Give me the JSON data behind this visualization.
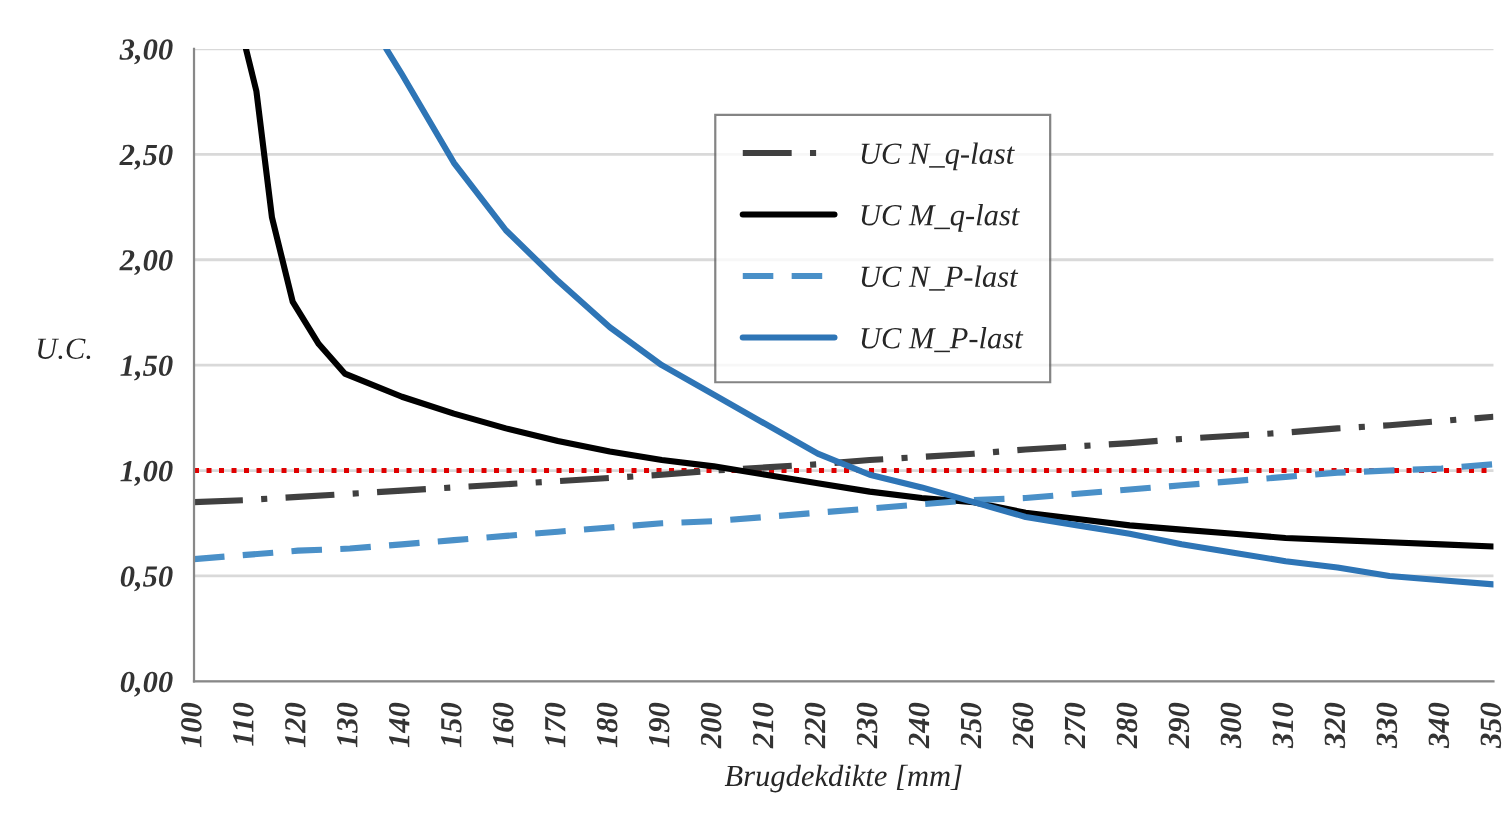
{
  "chart_data": {
    "type": "line",
    "xlabel": "Brugdekdikte [mm]",
    "ylabel": "U.C.",
    "x": [
      100,
      110,
      120,
      130,
      140,
      150,
      160,
      170,
      180,
      190,
      200,
      210,
      220,
      230,
      240,
      250,
      260,
      270,
      280,
      290,
      300,
      310,
      320,
      330,
      340,
      350
    ],
    "series": [
      {
        "name": "UC N_q-last",
        "color": "#404040",
        "line_style": "dashdot",
        "values": [
          0.85,
          0.86,
          0.875,
          0.89,
          0.905,
          0.92,
          0.935,
          0.95,
          0.965,
          0.98,
          1.0,
          1.015,
          1.03,
          1.05,
          1.065,
          1.08,
          1.1,
          1.115,
          1.13,
          1.15,
          1.165,
          1.18,
          1.2,
          1.215,
          1.235,
          1.255
        ]
      },
      {
        "name": "UC M_q-last",
        "color": "#000000",
        "line_style": "solid",
        "x": [
          110,
          112,
          115,
          119,
          124,
          129,
          140,
          150,
          160,
          170,
          180,
          190,
          200,
          210,
          220,
          230,
          240,
          250,
          260,
          270,
          280,
          290,
          300,
          310,
          320,
          330,
          340,
          350
        ],
        "values": [
          3.0,
          2.8,
          2.2,
          1.8,
          1.6,
          1.46,
          1.35,
          1.27,
          1.2,
          1.14,
          1.09,
          1.05,
          1.02,
          0.98,
          0.94,
          0.9,
          0.87,
          0.85,
          0.8,
          0.77,
          0.74,
          0.72,
          0.7,
          0.68,
          0.67,
          0.66,
          0.65,
          0.64
        ]
      },
      {
        "name": "UC N_P-last",
        "color": "#4a90c8",
        "line_style": "dashed",
        "values": [
          0.58,
          0.6,
          0.62,
          0.63,
          0.65,
          0.67,
          0.69,
          0.71,
          0.73,
          0.75,
          0.76,
          0.78,
          0.8,
          0.82,
          0.84,
          0.86,
          0.87,
          0.89,
          0.91,
          0.93,
          0.95,
          0.97,
          0.99,
          1.0,
          1.01,
          1.03
        ]
      },
      {
        "name": "UC M_P-last",
        "color": "#2e75b6",
        "line_style": "solid",
        "x": [
          137,
          140,
          150,
          160,
          170,
          180,
          190,
          200,
          210,
          220,
          230,
          240,
          250,
          260,
          270,
          280,
          290,
          300,
          310,
          320,
          330,
          340,
          350
        ],
        "values": [
          3.0,
          2.88,
          2.46,
          2.14,
          1.9,
          1.68,
          1.5,
          1.36,
          1.22,
          1.08,
          0.98,
          0.92,
          0.85,
          0.78,
          0.74,
          0.7,
          0.65,
          0.61,
          0.57,
          0.54,
          0.5,
          0.48,
          0.46
        ]
      }
    ],
    "ref_lines": [
      {
        "axis": "y",
        "value": 1.0,
        "color": "#e00000",
        "line_style": "dotted"
      }
    ],
    "xlim": [
      100,
      350
    ],
    "xticks": [
      100,
      110,
      120,
      130,
      140,
      150,
      160,
      170,
      180,
      190,
      200,
      210,
      220,
      230,
      240,
      250,
      260,
      270,
      280,
      290,
      300,
      310,
      320,
      330,
      340,
      350
    ],
    "ylim": [
      0,
      3
    ],
    "yticks": [
      {
        "value": 0,
        "label": "0,00"
      },
      {
        "value": 0.5,
        "label": "0,50"
      },
      {
        "value": 1,
        "label": "1,00"
      },
      {
        "value": 1.5,
        "label": "1,50"
      },
      {
        "value": 2,
        "label": "2,00"
      },
      {
        "value": 2.5,
        "label": "2,50"
      },
      {
        "value": 3,
        "label": "3,00"
      }
    ],
    "grid": "y",
    "legend": "top"
  }
}
